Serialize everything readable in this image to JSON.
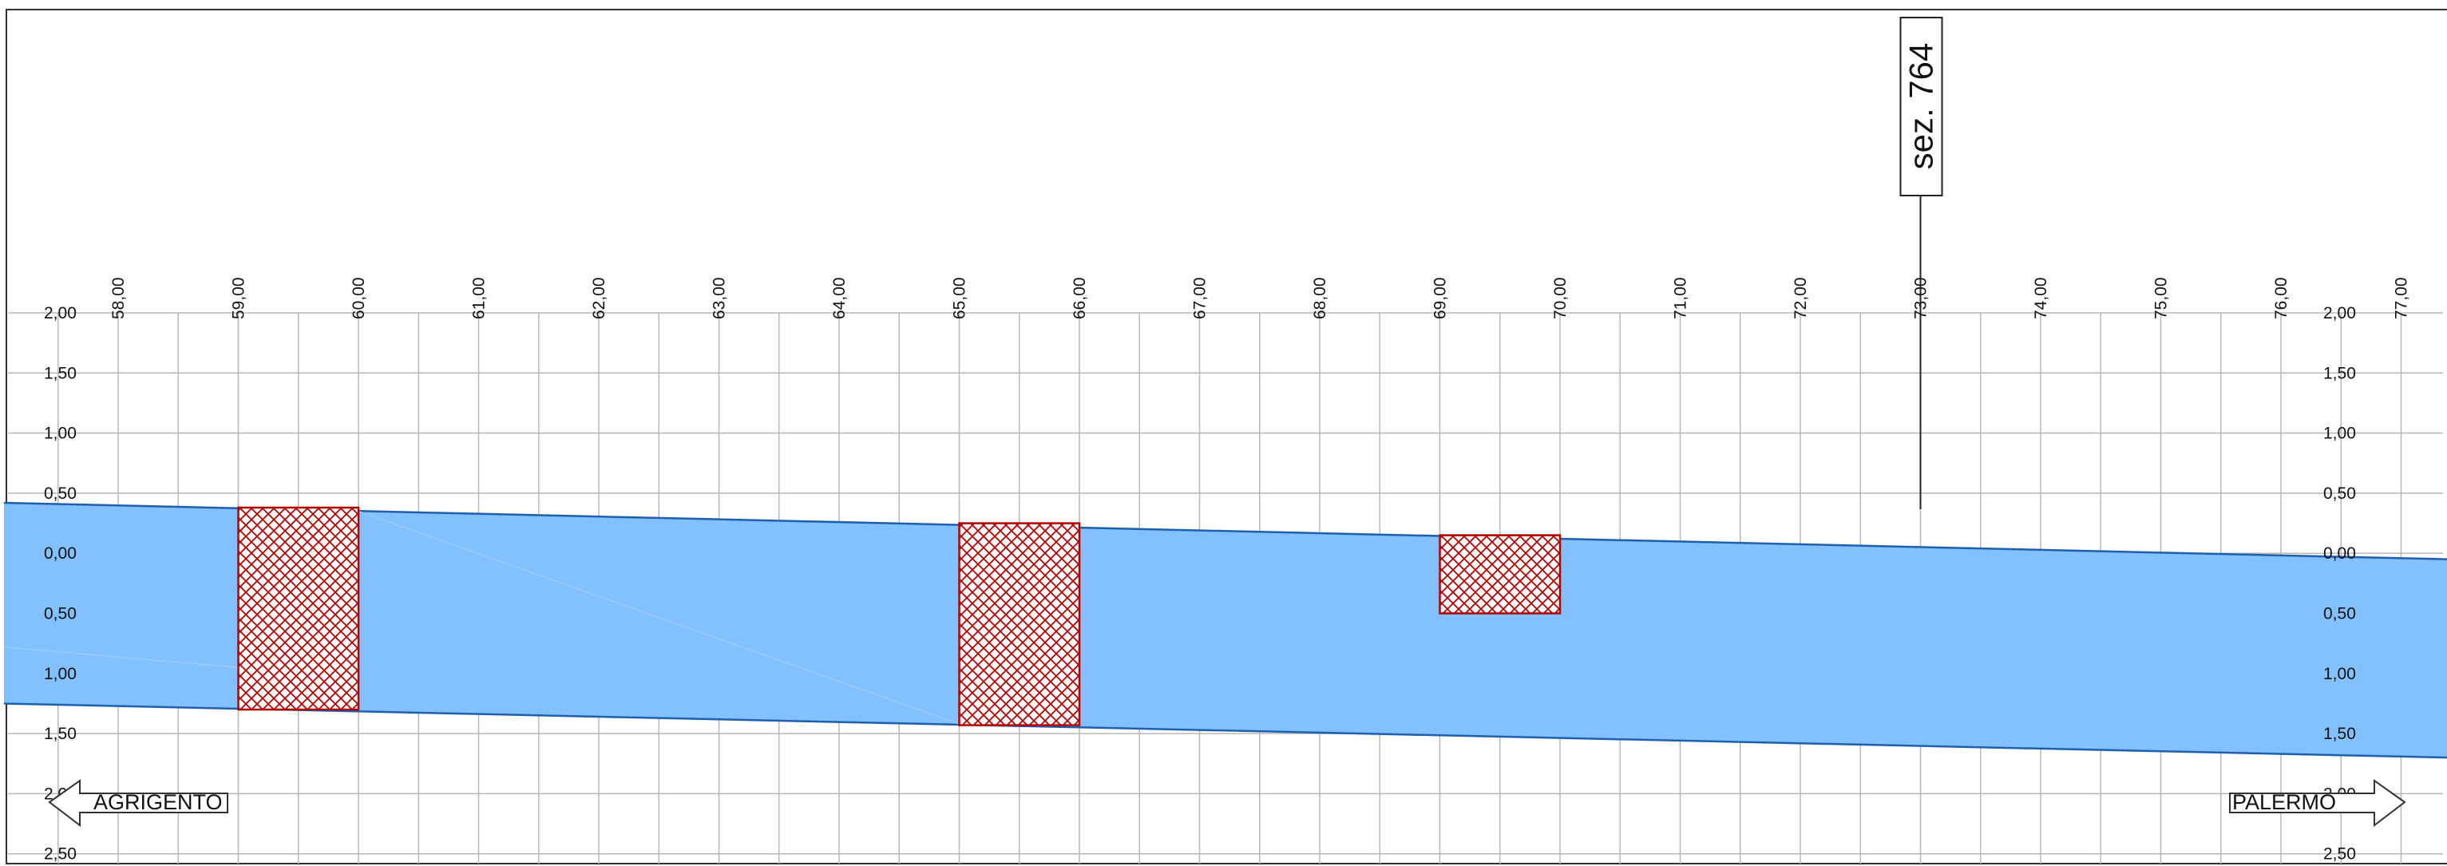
{
  "station_ticks": [
    "58,00",
    "59,00",
    "60,00",
    "61,00",
    "62,00",
    "63,00",
    "64,00",
    "65,00",
    "66,00",
    "67,00",
    "68,00",
    "69,00",
    "70,00",
    "71,00",
    "72,00",
    "73,00",
    "74,00",
    "75,00",
    "76,00",
    "77,00"
  ],
  "level_labels": [
    "2,00",
    "1,50",
    "1,00",
    "0,50",
    "0,00",
    "0,50",
    "1,00",
    "1,50",
    "2,00",
    "2,50"
  ],
  "section_marker": {
    "label": "sez. 764",
    "station": 73.0
  },
  "direction_left": {
    "label": "AGRIGENTO"
  },
  "direction_right": {
    "label": "PALERMO"
  },
  "road_band": {
    "top_edge": [
      {
        "station": 57.05,
        "level": 0.42
      },
      {
        "station": 77.4,
        "level": -0.05
      }
    ],
    "bottom_edge": [
      {
        "station": 57.05,
        "level": -1.25
      },
      {
        "station": 77.4,
        "level": -1.7
      }
    ]
  },
  "hatched_areas": [
    {
      "from_station": 59.0,
      "to_station": 60.0,
      "top_level": 0.38,
      "bottom_level": -1.3
    },
    {
      "from_station": 65.0,
      "to_station": 66.0,
      "top_level": 0.25,
      "bottom_level": -1.43
    },
    {
      "from_station": 69.0,
      "to_station": 70.0,
      "top_level": 0.15,
      "bottom_level": -0.5
    }
  ],
  "colors": {
    "band": "#7fbfff",
    "band_edge": "#1f5fb0",
    "hatch": "#b00000",
    "grid": "#b8b8b8"
  }
}
